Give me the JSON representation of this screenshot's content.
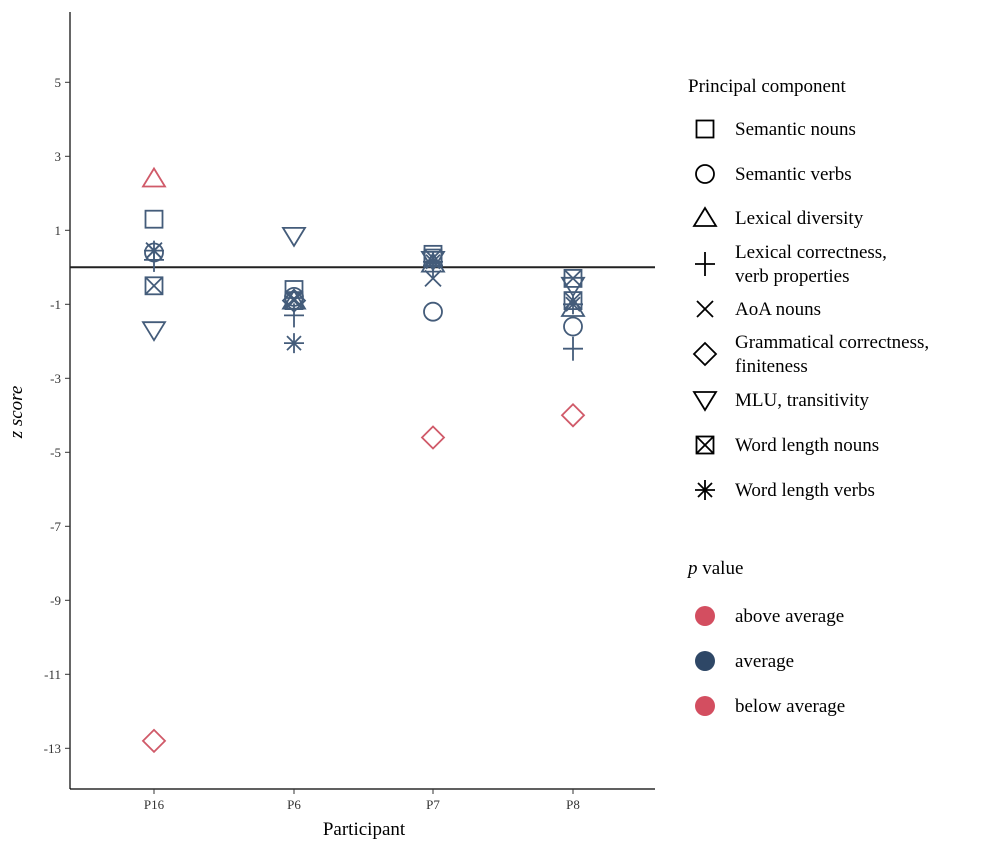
{
  "chart_data": {
    "type": "scatter",
    "xlabel": "Participant",
    "ylabel": "z score",
    "categories": [
      "P16",
      "P6",
      "P7",
      "P8"
    ],
    "ylim": [
      -14.1,
      6.9
    ],
    "yticks": [
      5,
      3,
      1,
      -1,
      -3,
      -5,
      -7,
      -9,
      -11,
      -13
    ],
    "reference_line": 0,
    "grid": false,
    "legend_placement": "right",
    "series": [
      {
        "name": "Semantic nouns",
        "shape": "square",
        "values": [
          1.3,
          -0.6,
          0.35,
          -0.9
        ]
      },
      {
        "name": "Semantic verbs",
        "shape": "circle",
        "values": [
          0.4,
          -0.8,
          -1.2,
          -1.6
        ]
      },
      {
        "name": "Lexical diversity",
        "shape": "triangle-up",
        "values": [
          2.4,
          -0.9,
          0.1,
          -1.1
        ]
      },
      {
        "name": "Lexical correctness, verb properties",
        "shape": "plus",
        "values": [
          0.2,
          -1.3,
          0.05,
          -2.2
        ]
      },
      {
        "name": "AoA nouns",
        "shape": "cross",
        "values": [
          0.45,
          -0.85,
          -0.3,
          -0.9
        ]
      },
      {
        "name": "Grammatical correctness, finiteness",
        "shape": "diamond",
        "values": [
          -12.8,
          -0.9,
          -4.6,
          -4.0
        ]
      },
      {
        "name": "MLU, transitivity",
        "shape": "triangle-down",
        "values": [
          -1.7,
          0.85,
          0.2,
          -0.5
        ]
      },
      {
        "name": "Word length nouns",
        "shape": "square-x",
        "values": [
          -0.5,
          -0.9,
          0.25,
          -0.3
        ]
      },
      {
        "name": "Word length verbs",
        "shape": "asterisk",
        "values": [
          0.45,
          -2.05,
          0.15,
          -1.0
        ]
      }
    ],
    "highlighted_points": [
      {
        "series": "Lexical diversity",
        "category": "P16",
        "p_value": "above average"
      },
      {
        "series": "Grammatical correctness, finiteness",
        "category": "P16",
        "p_value": "below average"
      },
      {
        "series": "Grammatical correctness, finiteness",
        "category": "P7",
        "p_value": "below average"
      },
      {
        "series": "Grammatical correctness, finiteness",
        "category": "P8",
        "p_value": "below average"
      }
    ],
    "legend": {
      "shape_title": "Principal component",
      "shape_items": [
        {
          "label_lines": [
            "Semantic nouns"
          ],
          "shape": "square"
        },
        {
          "label_lines": [
            "Semantic verbs"
          ],
          "shape": "circle"
        },
        {
          "label_lines": [
            "Lexical diversity"
          ],
          "shape": "triangle-up"
        },
        {
          "label_lines": [
            "Lexical correctness,",
            "verb properties"
          ],
          "shape": "plus"
        },
        {
          "label_lines": [
            "AoA nouns"
          ],
          "shape": "cross"
        },
        {
          "label_lines": [
            "Grammatical correctness,",
            "finiteness"
          ],
          "shape": "diamond"
        },
        {
          "label_lines": [
            "MLU, transitivity"
          ],
          "shape": "triangle-down"
        },
        {
          "label_lines": [
            "Word length nouns"
          ],
          "shape": "square-x"
        },
        {
          "label_lines": [
            "Word length verbs"
          ],
          "shape": "asterisk"
        }
      ],
      "color_title_italic": "p",
      "color_title_rest": " value",
      "color_items": [
        {
          "label": "above average",
          "color": "#d34e60"
        },
        {
          "label": "average",
          "color": "#2e4766"
        },
        {
          "label": "below average",
          "color": "#d34e60"
        }
      ]
    },
    "colors": {
      "average": "#445c7a",
      "highlight": "#d05a69",
      "axis": "#000000",
      "reference_line": "#222222"
    }
  }
}
